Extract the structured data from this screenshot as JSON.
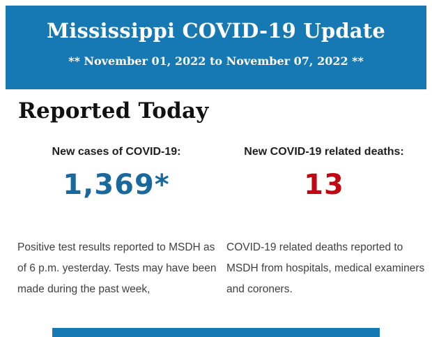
{
  "colors": {
    "background": "#ffffff",
    "banner_blue": "#1679b3",
    "cases_blue": "#17699e",
    "deaths_red": "#c10712",
    "heading_black": "#111111",
    "label_dark": "#1f1f1f",
    "body_text": "#3f3f3f",
    "banner_text": "#ffffff"
  },
  "header": {
    "title": "Mississippi COVID-19 Update",
    "subtitle": "** November 01, 2022 to November 07, 2022 **"
  },
  "main": {
    "section_title": "Reported Today",
    "stats": [
      {
        "label": "New cases of COVID-19:",
        "value": "1,369*",
        "description": [
          "Positive test results reported to MSDH as",
          "of 6 p.m. yesterday. Tests may have been",
          "made during the past week,"
        ]
      },
      {
        "label": "New COVID-19 related deaths:",
        "value": "13",
        "description": [
          "COVID-19 related deaths reported to",
          "MSDH from hospitals, medical examiners",
          "and coroners."
        ]
      }
    ]
  }
}
